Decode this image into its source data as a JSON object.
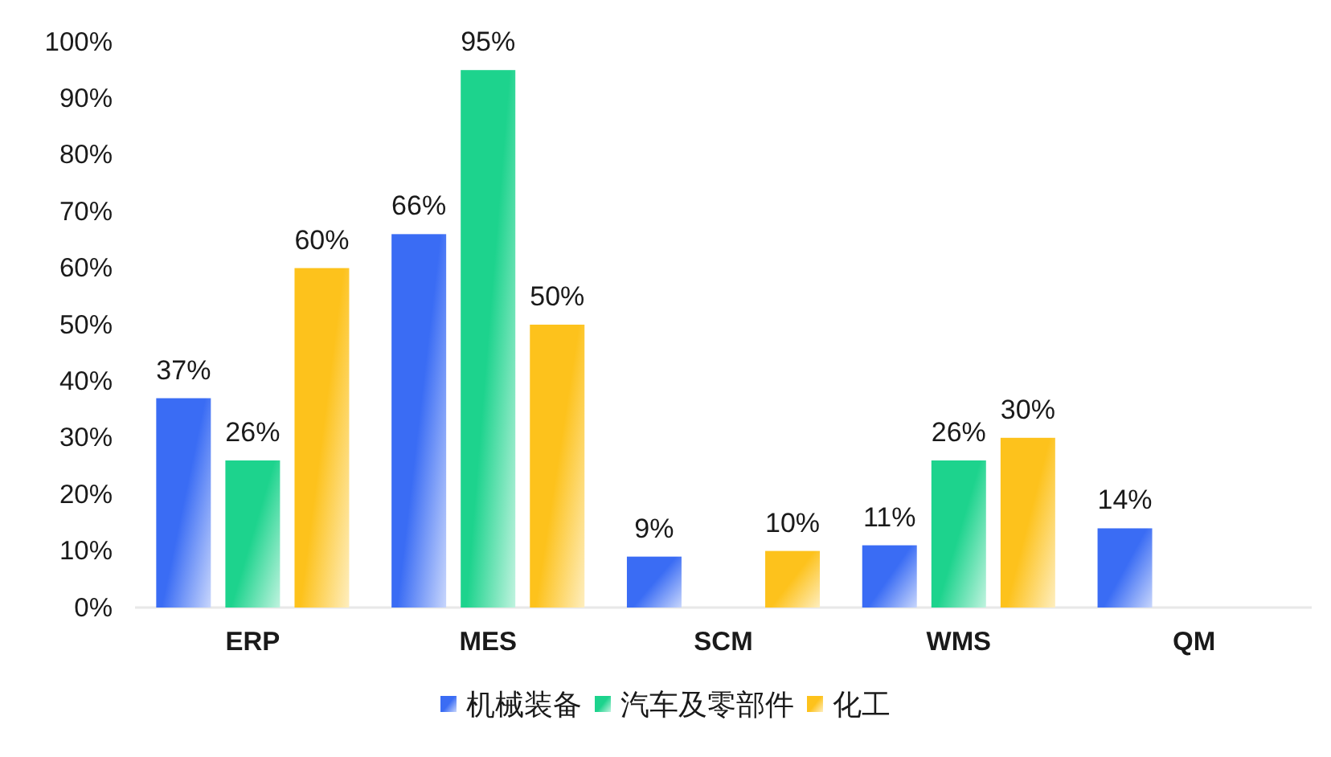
{
  "chart_data": {
    "type": "bar",
    "categories": [
      "ERP",
      "MES",
      "SCM",
      "WMS",
      "QM"
    ],
    "series": [
      {
        "name": "机械装备",
        "color": "#3a6cf4",
        "values": [
          37,
          66,
          9,
          11,
          14
        ],
        "value_labels": [
          "37%",
          "66%",
          "9%",
          "11%",
          "14%"
        ]
      },
      {
        "name": "汽车及零部件",
        "color": "#1dd38d",
        "values": [
          26,
          95,
          null,
          26,
          null
        ],
        "value_labels": [
          "26%",
          "95%",
          null,
          "26%",
          null
        ]
      },
      {
        "name": "化工",
        "color": "#fdc21c",
        "values": [
          60,
          50,
          10,
          30,
          null
        ],
        "value_labels": [
          "60%",
          "50%",
          "10%",
          "30%",
          null
        ]
      }
    ],
    "ylim": [
      0,
      100
    ],
    "yticks": [
      {
        "value": 0,
        "label": "0%"
      },
      {
        "value": 10,
        "label": "10%"
      },
      {
        "value": 20,
        "label": "20%"
      },
      {
        "value": 30,
        "label": "30%"
      },
      {
        "value": 40,
        "label": "40%"
      },
      {
        "value": 50,
        "label": "50%"
      },
      {
        "value": 60,
        "label": "60%"
      },
      {
        "value": 70,
        "label": "70%"
      },
      {
        "value": 80,
        "label": "80%"
      },
      {
        "value": 90,
        "label": "90%"
      },
      {
        "value": 100,
        "label": "100%"
      }
    ],
    "legend": "bottom"
  }
}
